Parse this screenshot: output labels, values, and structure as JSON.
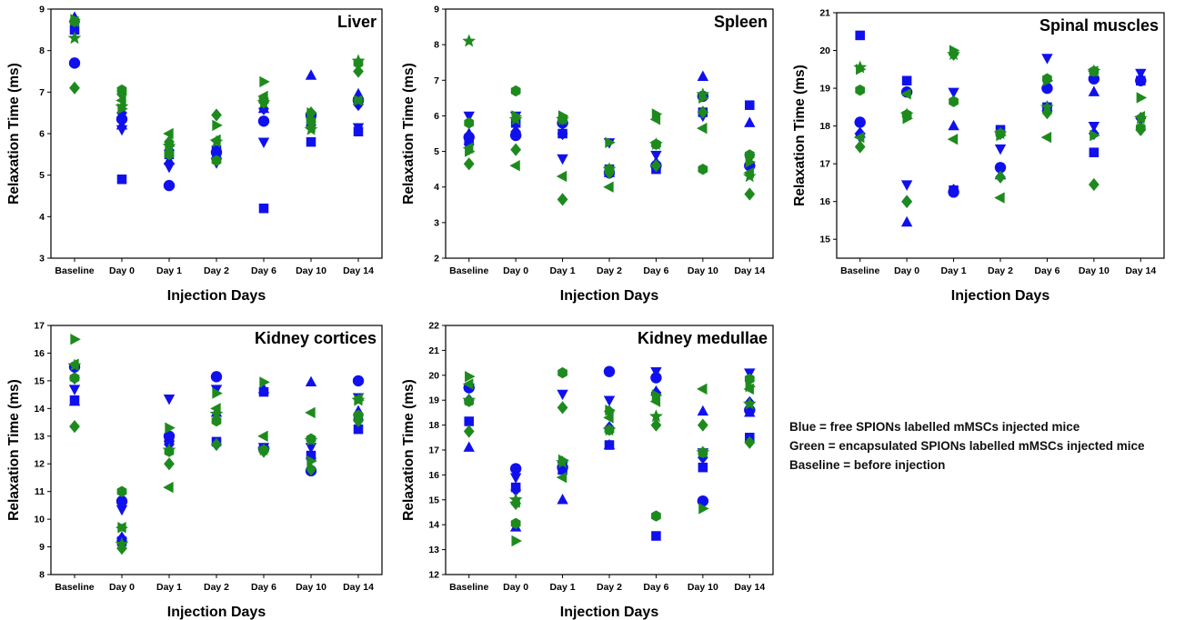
{
  "colors": {
    "blue": "#1010ee",
    "green": "#1e8a1e"
  },
  "notes": [
    "Blue = free SPIONs labelled mMSCs injected mice",
    "Green = encapsulated SPIONs labelled mMSCs injected mice",
    "Baseline = before injection"
  ],
  "chart_data": [
    {
      "type": "scatter",
      "title": "Liver",
      "xlabel": "Injection Days",
      "ylabel": "Relaxation Time (ms)",
      "categories": [
        "Baseline",
        "Day 0",
        "Day 1",
        "Day 2",
        "Day 6",
        "Day 10",
        "Day 14"
      ],
      "ylim": [
        3,
        9
      ],
      "yticks": [
        3,
        4,
        5,
        6,
        7,
        8,
        9
      ],
      "series": [
        {
          "color": "blue",
          "marker": "square",
          "values": [
            8.5,
            4.9,
            5.5,
            5.6,
            4.2,
            5.8,
            6.05
          ]
        },
        {
          "color": "blue",
          "marker": "circle",
          "values": [
            7.7,
            6.35,
            4.75,
            5.55,
            6.3,
            6.45,
            6.8
          ]
        },
        {
          "color": "blue",
          "marker": "triangle-up",
          "values": [
            8.8,
            6.2,
            5.35,
            5.5,
            6.6,
            7.4,
            6.95
          ]
        },
        {
          "color": "blue",
          "marker": "triangle-down",
          "values": [
            8.6,
            6.1,
            5.2,
            5.3,
            5.8,
            6.3,
            6.15
          ]
        },
        {
          "color": "blue",
          "marker": "diamond",
          "values": [
            8.7,
            6.5,
            5.6,
            5.5,
            6.6,
            6.2,
            6.7
          ]
        },
        {
          "color": "green",
          "marker": "diamond",
          "values": [
            7.1,
            6.95,
            5.8,
            6.45,
            6.75,
            6.5,
            7.5
          ]
        },
        {
          "color": "green",
          "marker": "star",
          "values": [
            8.3,
            6.65,
            5.7,
            5.8,
            6.75,
            6.1,
            7.75
          ]
        },
        {
          "color": "green",
          "marker": "hexagon",
          "values": [
            8.7,
            7.05,
            5.5,
            5.35,
            6.8,
            6.3,
            7.7
          ]
        },
        {
          "color": "green",
          "marker": "triangle-left",
          "values": [
            8.7,
            6.8,
            6.0,
            5.85,
            6.9,
            6.15,
            6.8
          ]
        },
        {
          "color": "green",
          "marker": "triangle-right",
          "values": [
            8.75,
            6.6,
            5.7,
            6.2,
            7.25,
            6.5,
            6.8
          ]
        }
      ]
    },
    {
      "type": "scatter",
      "title": "Spleen",
      "xlabel": "Injection Days",
      "ylabel": "Relaxation Time (ms)",
      "categories": [
        "Baseline",
        "Day 0",
        "Day 1",
        "Day 2",
        "Day 6",
        "Day 10",
        "Day 14"
      ],
      "ylim": [
        2,
        9
      ],
      "yticks": [
        2,
        3,
        4,
        5,
        6,
        7,
        8,
        9
      ],
      "series": [
        {
          "color": "blue",
          "marker": "square",
          "values": [
            5.3,
            5.8,
            5.5,
            4.5,
            4.5,
            6.1,
            6.3
          ]
        },
        {
          "color": "blue",
          "marker": "circle",
          "values": [
            5.4,
            5.45,
            5.8,
            4.4,
            4.6,
            6.55,
            4.6
          ]
        },
        {
          "color": "blue",
          "marker": "triangle-up",
          "values": [
            5.5,
            5.6,
            5.9,
            4.4,
            4.7,
            7.1,
            5.8
          ]
        },
        {
          "color": "blue",
          "marker": "triangle-down",
          "values": [
            6.0,
            6.0,
            4.8,
            5.25,
            4.9,
            6.0,
            4.8
          ]
        },
        {
          "color": "blue",
          "marker": "diamond",
          "values": [
            5.2,
            5.55,
            5.5,
            4.4,
            4.6,
            6.1,
            4.55
          ]
        },
        {
          "color": "green",
          "marker": "diamond",
          "values": [
            4.65,
            5.05,
            3.65,
            4.4,
            4.6,
            6.1,
            3.8
          ]
        },
        {
          "color": "green",
          "marker": "star",
          "values": [
            8.1,
            5.9,
            5.9,
            4.5,
            5.2,
            6.6,
            4.3
          ]
        },
        {
          "color": "green",
          "marker": "hexagon",
          "values": [
            5.8,
            6.7,
            5.9,
            4.5,
            5.2,
            4.5,
            4.9
          ]
        },
        {
          "color": "green",
          "marker": "triangle-left",
          "values": [
            5.1,
            4.6,
            4.3,
            4.0,
            5.9,
            5.65,
            4.4
          ]
        },
        {
          "color": "green",
          "marker": "triangle-right",
          "values": [
            5.0,
            6.0,
            6.0,
            5.25,
            6.05,
            6.5,
            4.7
          ]
        }
      ]
    },
    {
      "type": "scatter",
      "title": "Spinal muscles",
      "xlabel": "Injection Days",
      "ylabel": "Relaxation Time (ms)",
      "categories": [
        "Baseline",
        "Day 0",
        "Day 1",
        "Day 2",
        "Day 6",
        "Day 10",
        "Day 14"
      ],
      "ylim": [
        14.5,
        21
      ],
      "yticks": [
        15,
        16,
        17,
        18,
        19,
        20,
        21
      ],
      "series": [
        {
          "color": "blue",
          "marker": "square",
          "values": [
            20.4,
            19.2,
            16.3,
            17.9,
            18.5,
            17.3,
            19.2
          ]
        },
        {
          "color": "blue",
          "marker": "circle",
          "values": [
            18.1,
            18.9,
            16.25,
            16.9,
            19.0,
            19.25,
            19.2
          ]
        },
        {
          "color": "blue",
          "marker": "triangle-up",
          "values": [
            17.8,
            15.45,
            18.0,
            16.7,
            18.5,
            18.9,
            19.3
          ]
        },
        {
          "color": "blue",
          "marker": "triangle-down",
          "values": [
            17.7,
            16.45,
            18.9,
            17.4,
            19.8,
            18.0,
            19.4
          ]
        },
        {
          "color": "blue",
          "marker": "diamond",
          "values": [
            17.8,
            16.0,
            16.3,
            17.8,
            18.5,
            17.8,
            18.2
          ]
        },
        {
          "color": "green",
          "marker": "diamond",
          "values": [
            17.45,
            16.0,
            19.9,
            16.65,
            18.35,
            16.45,
            17.9
          ]
        },
        {
          "color": "green",
          "marker": "star",
          "values": [
            19.55,
            18.3,
            19.9,
            17.8,
            18.5,
            19.45,
            18.2
          ]
        },
        {
          "color": "green",
          "marker": "hexagon",
          "values": [
            18.95,
            18.3,
            18.65,
            17.8,
            19.25,
            19.45,
            17.95
          ]
        },
        {
          "color": "green",
          "marker": "triangle-left",
          "values": [
            17.7,
            18.85,
            17.65,
            16.1,
            17.7,
            19.45,
            18.25
          ]
        },
        {
          "color": "green",
          "marker": "triangle-right",
          "values": [
            19.5,
            18.2,
            20.0,
            17.75,
            19.2,
            17.75,
            18.75
          ]
        }
      ]
    },
    {
      "type": "scatter",
      "title": "Kidney cortices",
      "xlabel": "Injection Days",
      "ylabel": "Relaxation Time (ms)",
      "categories": [
        "Baseline",
        "Day 0",
        "Day 1",
        "Day 2",
        "Day 6",
        "Day 10",
        "Day 14"
      ],
      "ylim": [
        8,
        17
      ],
      "yticks": [
        8,
        9,
        10,
        11,
        12,
        13,
        14,
        15,
        16,
        17
      ],
      "series": [
        {
          "color": "blue",
          "marker": "square",
          "values": [
            14.3,
            9.2,
            12.9,
            12.8,
            14.6,
            12.3,
            13.25
          ]
        },
        {
          "color": "blue",
          "marker": "circle",
          "values": [
            15.5,
            10.65,
            13.0,
            15.15,
            12.55,
            11.75,
            15.0
          ]
        },
        {
          "color": "blue",
          "marker": "triangle-up",
          "values": [
            14.25,
            9.35,
            12.95,
            13.85,
            14.7,
            14.95,
            13.9
          ]
        },
        {
          "color": "blue",
          "marker": "triangle-down",
          "values": [
            14.7,
            10.35,
            14.35,
            14.7,
            12.6,
            12.6,
            14.4
          ]
        },
        {
          "color": "blue",
          "marker": "diamond",
          "values": [
            15.1,
            9.3,
            12.7,
            12.7,
            12.5,
            12.2,
            13.6
          ]
        },
        {
          "color": "green",
          "marker": "diamond",
          "values": [
            13.35,
            8.95,
            12.0,
            12.7,
            12.45,
            11.8,
            13.55
          ]
        },
        {
          "color": "green",
          "marker": "star",
          "values": [
            15.55,
            9.1,
            12.5,
            13.8,
            12.5,
            12.85,
            14.3
          ]
        },
        {
          "color": "green",
          "marker": "hexagon",
          "values": [
            15.1,
            11.0,
            12.45,
            13.55,
            12.5,
            12.9,
            13.75
          ]
        },
        {
          "color": "green",
          "marker": "triangle-left",
          "values": [
            15.6,
            9.7,
            11.15,
            14.0,
            13.0,
            13.85,
            14.35
          ]
        },
        {
          "color": "green",
          "marker": "triangle-right",
          "values": [
            16.5,
            9.7,
            13.3,
            14.55,
            14.95,
            12.1,
            14.3
          ]
        }
      ]
    },
    {
      "type": "scatter",
      "title": "Kidney medullae",
      "xlabel": "Injection Days",
      "ylabel": "Relaxation Time (ms)",
      "categories": [
        "Baseline",
        "Day 0",
        "Day 1",
        "Day 2",
        "Day 6",
        "Day 10",
        "Day 14"
      ],
      "ylim": [
        12,
        22
      ],
      "yticks": [
        12,
        13,
        14,
        15,
        16,
        17,
        18,
        19,
        20,
        21,
        22
      ],
      "series": [
        {
          "color": "blue",
          "marker": "square",
          "values": [
            18.15,
            15.5,
            16.2,
            17.2,
            13.55,
            16.3,
            17.5
          ]
        },
        {
          "color": "blue",
          "marker": "circle",
          "values": [
            19.5,
            16.25,
            16.3,
            20.15,
            19.9,
            14.95,
            18.6
          ]
        },
        {
          "color": "blue",
          "marker": "triangle-up",
          "values": [
            17.1,
            13.9,
            15.0,
            17.2,
            19.35,
            18.55,
            18.5
          ]
        },
        {
          "color": "blue",
          "marker": "triangle-down",
          "values": [
            19.5,
            15.9,
            19.25,
            19.0,
            20.15,
            16.9,
            20.1
          ]
        },
        {
          "color": "blue",
          "marker": "diamond",
          "values": [
            19.0,
            15.4,
            16.5,
            17.9,
            19.3,
            16.7,
            18.9
          ]
        },
        {
          "color": "green",
          "marker": "diamond",
          "values": [
            17.75,
            14.85,
            18.7,
            18.55,
            18.0,
            18.0,
            17.3
          ]
        },
        {
          "color": "green",
          "marker": "star",
          "values": [
            19.0,
            15.0,
            16.5,
            17.8,
            18.35,
            16.9,
            18.85
          ]
        },
        {
          "color": "green",
          "marker": "hexagon",
          "values": [
            18.95,
            14.05,
            20.1,
            17.8,
            14.35,
            16.9,
            19.85
          ]
        },
        {
          "color": "green",
          "marker": "triangle-left",
          "values": [
            19.65,
            14.9,
            15.9,
            18.3,
            18.95,
            19.45,
            19.45
          ]
        },
        {
          "color": "green",
          "marker": "triangle-right",
          "values": [
            19.95,
            13.35,
            16.6,
            18.6,
            19.2,
            14.65,
            19.55
          ]
        }
      ]
    }
  ]
}
